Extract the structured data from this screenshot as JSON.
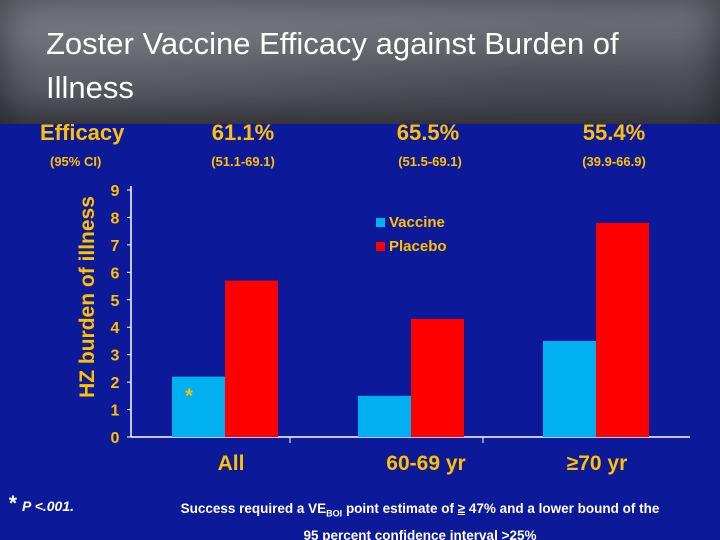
{
  "slide": {
    "title": "Zoster Vaccine Efficacy against Burden of Illness"
  },
  "efficacy_row": {
    "label": "Efficacy",
    "ci_label": "(95% CI)",
    "groups": [
      {
        "efficacy": "61.1%",
        "ci": "(51.1-69.1)"
      },
      {
        "efficacy": "65.5%",
        "ci": "(51.5-69.1)"
      },
      {
        "efficacy": "55.4%",
        "ci": "(39.9-66.9)"
      }
    ]
  },
  "chart_data": {
    "type": "bar",
    "title": "",
    "xlabel": "",
    "ylabel": "HZ burden of illness",
    "categories": [
      "All",
      "60-69 yr",
      "≥70 yr"
    ],
    "series": [
      {
        "name": "Vaccine",
        "color": "#00b0f0",
        "values": [
          2.2,
          1.5,
          3.5
        ]
      },
      {
        "name": "Placebo",
        "color": "#ff0000",
        "values": [
          5.7,
          4.3,
          7.8
        ]
      }
    ],
    "ylim": [
      0,
      9
    ],
    "yticks": [
      "0",
      "1",
      "2",
      "3",
      "4",
      "5",
      "6",
      "7",
      "8",
      "9"
    ],
    "legend_position": "top-center",
    "annotation": "*",
    "grid": false
  },
  "footnotes": {
    "star": "*",
    "p_value": "P <.001.",
    "success_line1_pre": "Success required a VE",
    "success_sub": "BOI",
    "success_line1_mid": " point estimate of ",
    "success_ge": "≥",
    "success_line1_post": " 47% and a lower bound of the",
    "success_line2": "95 percent confidence interval >25%"
  },
  "colors": {
    "background": "#0c1a99",
    "label_gold": "#ffc000",
    "vaccine": "#00b0f0",
    "placebo": "#ff0000"
  }
}
